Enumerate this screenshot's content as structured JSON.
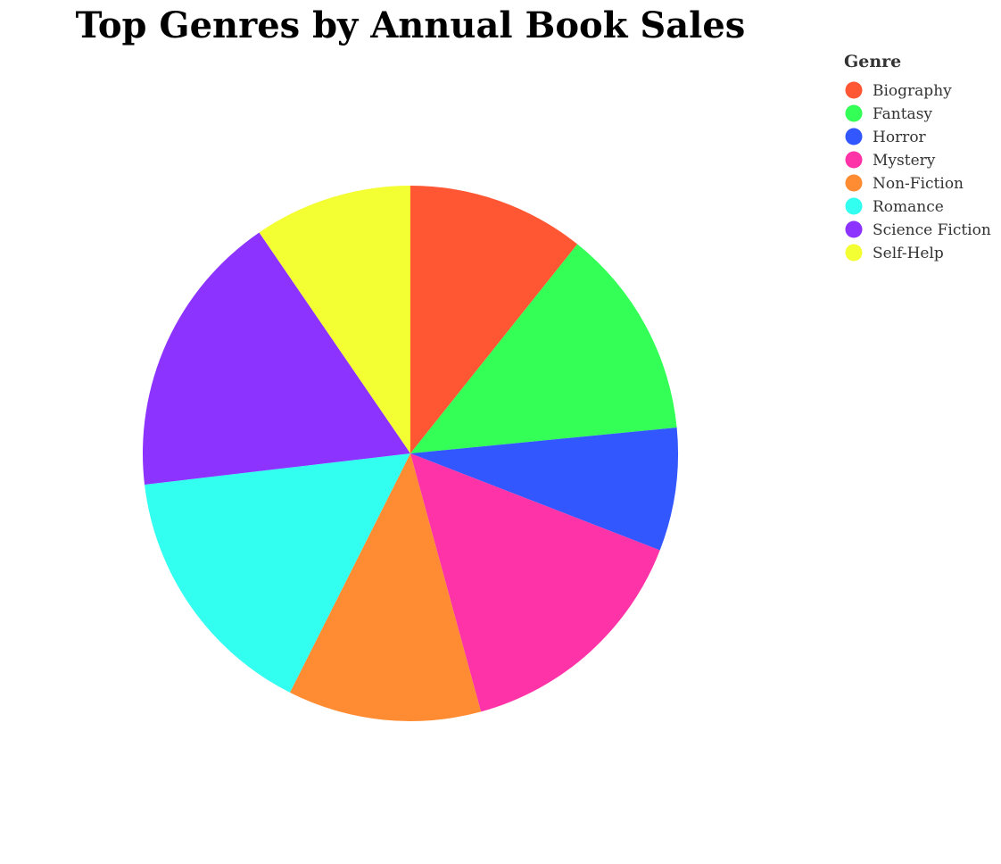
{
  "chart_data": {
    "type": "pie",
    "title": "Top Genres by Annual Book Sales",
    "legend_title": "Genre",
    "legend_position": "top-right",
    "slices": [
      {
        "label": "Biography",
        "value": 10.1,
        "color": "#ff5733"
      },
      {
        "label": "Fantasy",
        "value": 12.0,
        "color": "#33ff57"
      },
      {
        "label": "Horror",
        "value": 7.0,
        "color": "#3357ff"
      },
      {
        "label": "Mystery",
        "value": 14.0,
        "color": "#ff33a8"
      },
      {
        "label": "Non-Fiction",
        "value": 11.0,
        "color": "#ff8c33"
      },
      {
        "label": "Romance",
        "value": 14.8,
        "color": "#33fff0"
      },
      {
        "label": "Science Fiction",
        "value": 16.3,
        "color": "#8c33ff"
      },
      {
        "label": "Self-Help",
        "value": 9.0,
        "color": "#f3ff33"
      }
    ]
  }
}
